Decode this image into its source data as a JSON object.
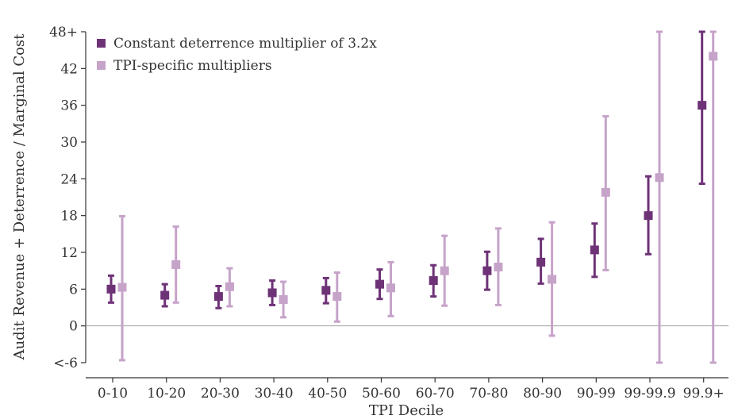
{
  "chart_data": {
    "type": "scatter",
    "title": "",
    "xlabel": "TPI Decile",
    "ylabel": "Audit Revenue + Deterrence / Marginal Cost",
    "ylim": [
      -6,
      48
    ],
    "yticks": [
      -6,
      0,
      6,
      12,
      18,
      24,
      30,
      36,
      42,
      48
    ],
    "ytick_labels": [
      "<-6",
      "0",
      "6",
      "12",
      "18",
      "24",
      "30",
      "36",
      "42",
      "48+"
    ],
    "categories": [
      "0-10",
      "10-20",
      "20-30",
      "30-40",
      "40-50",
      "50-60",
      "60-70",
      "70-80",
      "80-90",
      "90-99",
      "99-99.9",
      "99.9+"
    ],
    "reference_line": 0,
    "grid": false,
    "legend_position": "top-left",
    "series": [
      {
        "name": "Constant deterrence multiplier of 3.2x",
        "color": "#6e3277",
        "values": [
          6.0,
          5.0,
          4.8,
          5.4,
          5.8,
          6.8,
          7.4,
          9.0,
          10.4,
          12.4,
          18.0,
          36.0
        ],
        "lower": [
          3.8,
          3.2,
          2.9,
          3.4,
          3.7,
          4.4,
          4.8,
          5.9,
          6.9,
          8.0,
          11.7,
          23.2
        ],
        "upper": [
          8.2,
          6.8,
          6.5,
          7.4,
          7.8,
          9.2,
          9.9,
          12.1,
          14.2,
          16.7,
          24.4,
          48.0
        ]
      },
      {
        "name": "TPI-specific multipliers",
        "color": "#c6a3c9",
        "values": [
          6.3,
          10.0,
          6.4,
          4.3,
          4.8,
          6.2,
          9.0,
          9.6,
          7.6,
          21.8,
          24.2,
          44.0
        ],
        "lower": [
          -5.6,
          3.8,
          3.2,
          1.4,
          0.7,
          1.6,
          3.3,
          3.4,
          -1.6,
          9.1,
          -6.0,
          -6.0
        ],
        "upper": [
          17.9,
          16.2,
          9.4,
          7.2,
          8.7,
          10.4,
          14.7,
          15.9,
          16.9,
          34.2,
          48.0,
          48.0
        ]
      }
    ]
  }
}
